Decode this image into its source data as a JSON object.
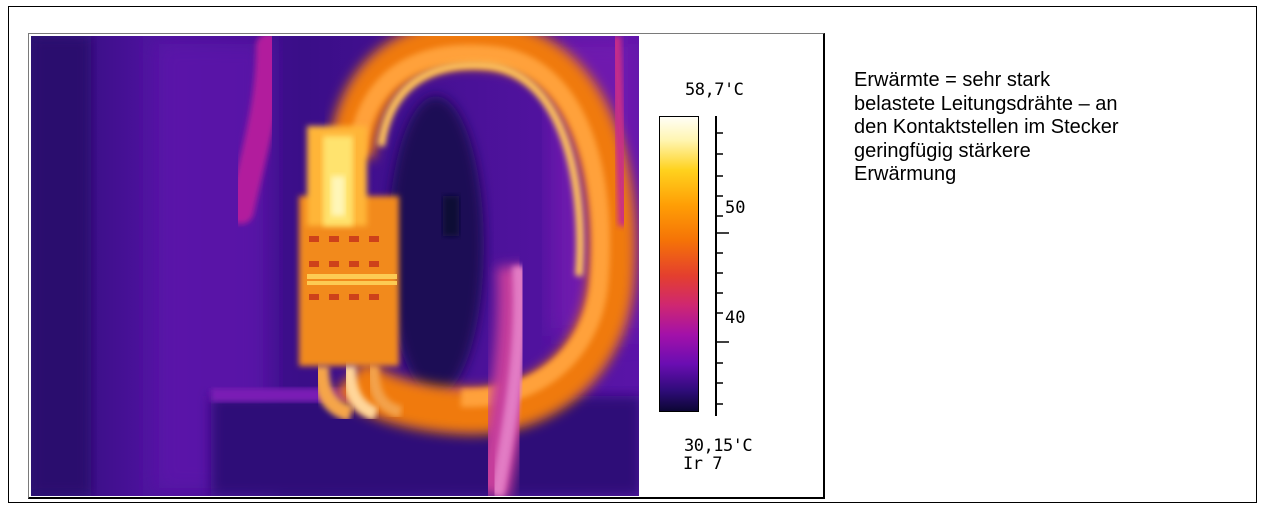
{
  "colorbar": {
    "max_label": "58,7'C",
    "min_label": "30,15'C",
    "palette_label": "Ir 7",
    "ticks": [
      {
        "value": 50,
        "label": "50"
      },
      {
        "value": 40,
        "label": "40"
      }
    ],
    "max_value": 58.7,
    "min_value": 30.15,
    "palette_colors": [
      "#fffef6",
      "#fff5b0",
      "#ffd21e",
      "#ff9e05",
      "#f57307",
      "#e43f2e",
      "#cf2771",
      "#a311a9",
      "#6a0db2",
      "#2f0c7a",
      "#0c0634"
    ]
  },
  "description": {
    "lines": [
      "Erwärmte = sehr stark",
      "belastete Leitungsdrähte – an",
      "den Kontaktstellen im Stecker",
      "geringfügig stärkere",
      "Erwärmung"
    ]
  }
}
